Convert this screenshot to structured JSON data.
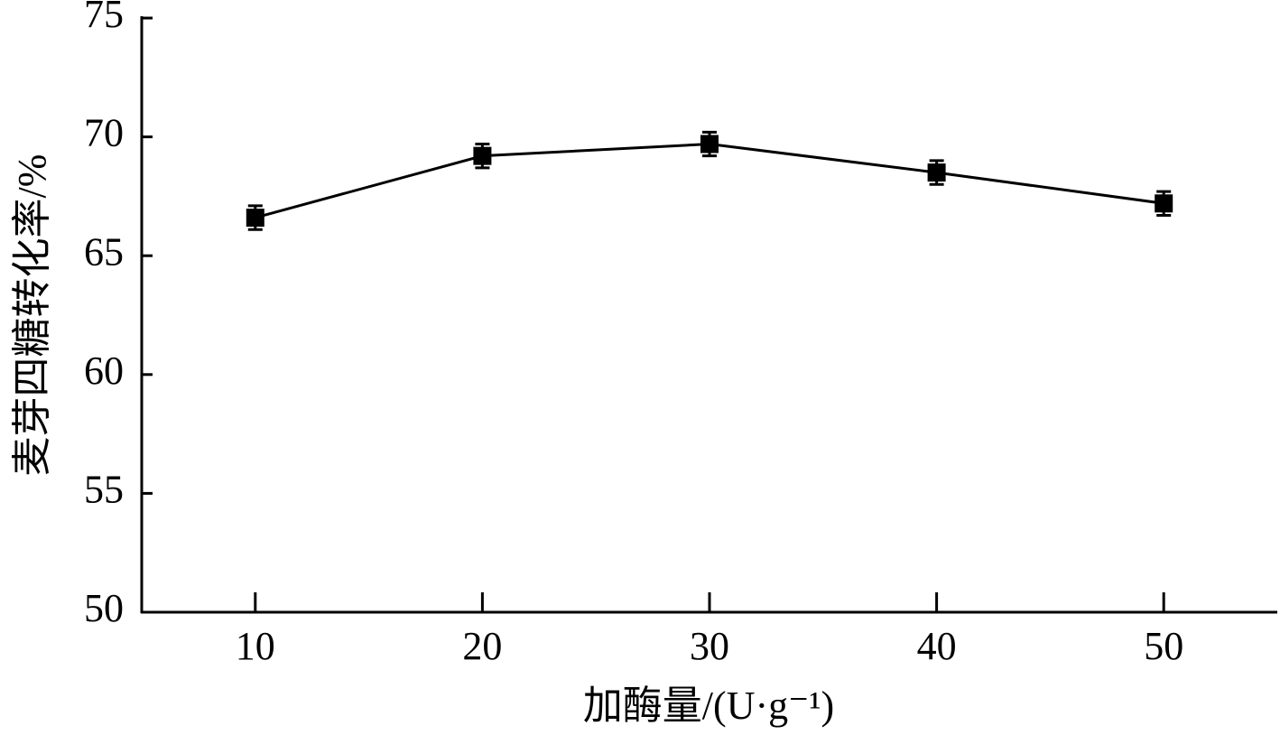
{
  "chart_data": {
    "type": "line",
    "xlabel": "加酶量/(U·g⁻¹)",
    "ylabel": "麦芽四糖转化率/%",
    "x": [
      10,
      20,
      30,
      40,
      50
    ],
    "series": [
      {
        "color": "#000000",
        "values": [
          66.6,
          69.2,
          69.7,
          68.5,
          67.2
        ],
        "errors": [
          0.5,
          0.5,
          0.5,
          0.5,
          0.5
        ]
      }
    ],
    "xlim": [
      5,
      55
    ],
    "xticks": [
      10,
      20,
      30,
      40,
      50
    ],
    "ylim": [
      50,
      75
    ],
    "yticks": [
      50,
      55,
      60,
      65,
      70,
      75
    ]
  }
}
